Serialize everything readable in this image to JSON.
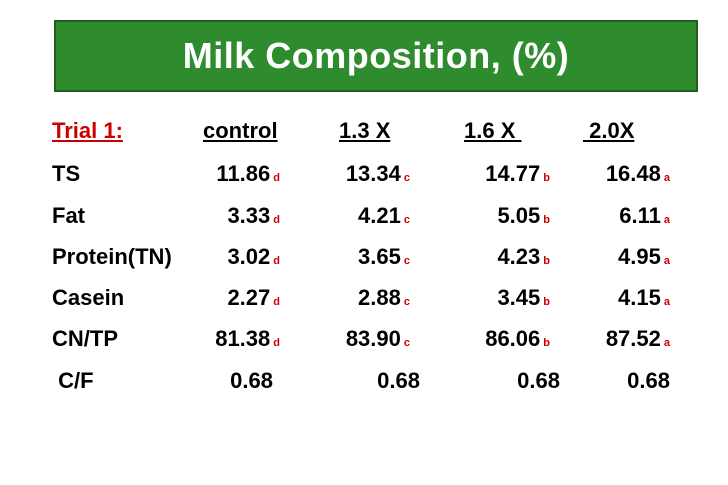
{
  "title": "Milk Composition, (%)",
  "colors": {
    "title_bg": "#2e8b2e",
    "title_text": "#ffffff",
    "accent_red": "#cc0000"
  },
  "header": {
    "label": "Trial 1:",
    "columns": [
      "control",
      "1.3 X",
      "1.6 X ",
      " 2.0X"
    ]
  },
  "rows": [
    {
      "label": "TS",
      "values": [
        "11.86",
        "13.34",
        "14.77",
        "16.48"
      ],
      "sig": [
        "d",
        "c",
        "b",
        "a"
      ]
    },
    {
      "label": "Fat",
      "values": [
        "3.33",
        "4.21",
        "5.05",
        "6.11"
      ],
      "sig": [
        "d",
        "c",
        "b",
        "a"
      ]
    },
    {
      "label": "Protein(TN)",
      "values": [
        "3.02",
        "3.65",
        "4.23",
        "4.95"
      ],
      "sig": [
        "d",
        "c",
        "b",
        "a"
      ]
    },
    {
      "label": "Casein",
      "values": [
        "2.27",
        "2.88",
        "3.45",
        "4.15"
      ],
      "sig": [
        "d",
        "c",
        "b",
        "a"
      ]
    },
    {
      "label": "CN/TP",
      "values": [
        "81.38",
        "83.90",
        "86.06",
        "87.52"
      ],
      "sig": [
        "d",
        "c",
        "b",
        "a"
      ]
    },
    {
      "label": " C/F",
      "values": [
        "0.68",
        "0.68",
        "0.68",
        "0.68"
      ],
      "sig": [
        "",
        "",
        "",
        ""
      ]
    }
  ]
}
